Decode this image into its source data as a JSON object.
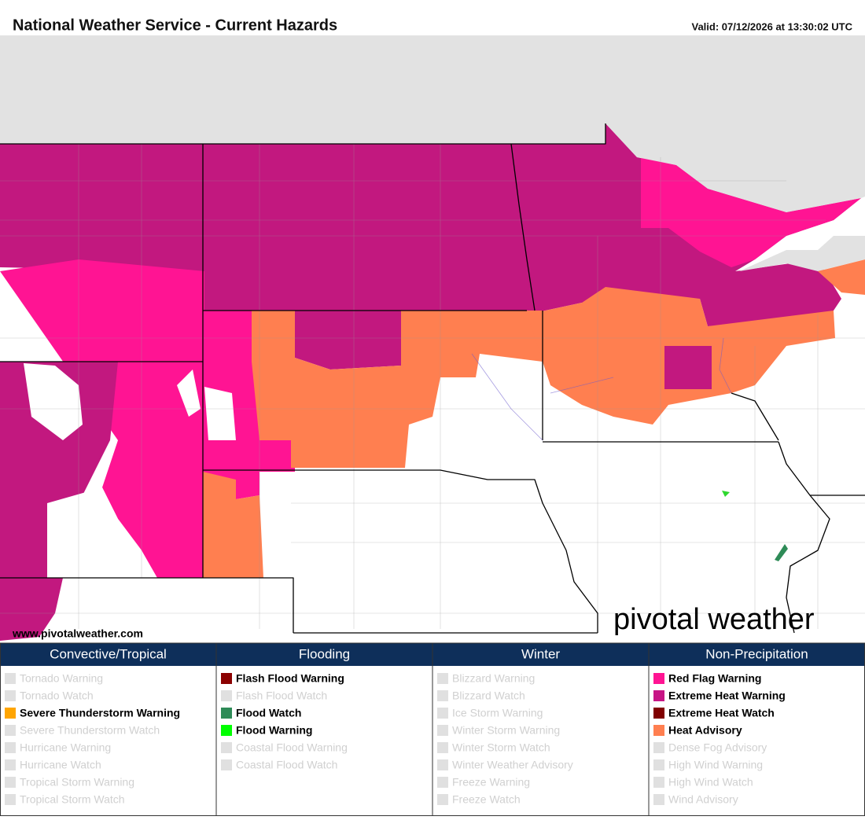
{
  "header": {
    "title": "National Weather Service - Current Hazards",
    "valid": "Valid: 07/12/2026 at 13:30:02 UTC"
  },
  "map": {
    "credit": "www.pivotalweather.com",
    "logo": "pivotal weather"
  },
  "legend": {
    "columns": [
      {
        "title": "Convective/Tropical",
        "items": [
          {
            "label": "Tornado Warning",
            "active": false
          },
          {
            "label": "Tornado Watch",
            "active": false
          },
          {
            "label": "Severe Thunderstorm Warning",
            "active": true,
            "color": "#ffa500"
          },
          {
            "label": "Severe Thunderstorm Watch",
            "active": false
          },
          {
            "label": "Hurricane Warning",
            "active": false
          },
          {
            "label": "Hurricane Watch",
            "active": false
          },
          {
            "label": "Tropical Storm Warning",
            "active": false
          },
          {
            "label": "Tropical Storm Watch",
            "active": false
          }
        ]
      },
      {
        "title": "Flooding",
        "items": [
          {
            "label": "Flash Flood Warning",
            "active": true,
            "color": "#8b0000"
          },
          {
            "label": "Flash Flood Watch",
            "active": false
          },
          {
            "label": "Flood Watch",
            "active": true,
            "color": "#2e8b57"
          },
          {
            "label": "Flood Warning",
            "active": true,
            "color": "#00ff00"
          },
          {
            "label": "Coastal Flood Warning",
            "active": false
          },
          {
            "label": "Coastal Flood Watch",
            "active": false
          }
        ]
      },
      {
        "title": "Winter",
        "items": [
          {
            "label": "Blizzard Warning",
            "active": false
          },
          {
            "label": "Blizzard Watch",
            "active": false
          },
          {
            "label": "Ice Storm Warning",
            "active": false
          },
          {
            "label": "Winter Storm Warning",
            "active": false
          },
          {
            "label": "Winter Storm Watch",
            "active": false
          },
          {
            "label": "Winter Weather Advisory",
            "active": false
          },
          {
            "label": "Freeze Warning",
            "active": false
          },
          {
            "label": "Freeze Watch",
            "active": false
          }
        ]
      },
      {
        "title": "Non-Precipitation",
        "items": [
          {
            "label": "Red Flag Warning",
            "active": true,
            "color": "#ff1493"
          },
          {
            "label": "Extreme Heat Warning",
            "active": true,
            "color": "#c71585"
          },
          {
            "label": "Extreme Heat Watch",
            "active": true,
            "color": "#800000"
          },
          {
            "label": "Heat Advisory",
            "active": true,
            "color": "#ff7f50"
          },
          {
            "label": "Dense Fog Advisory",
            "active": false
          },
          {
            "label": "High Wind Warning",
            "active": false
          },
          {
            "label": "High Wind Watch",
            "active": false
          },
          {
            "label": "Wind Advisory",
            "active": false
          }
        ]
      }
    ]
  }
}
